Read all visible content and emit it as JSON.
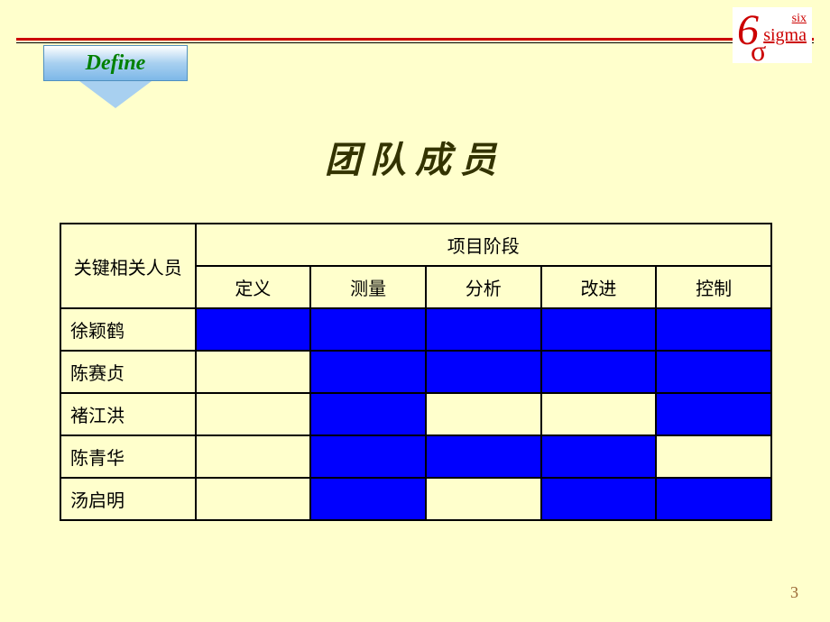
{
  "colors": {
    "slide_background": "#ffffcc",
    "header_rule": "#cc0000",
    "table_border": "#000000",
    "cell_filled": "#0000ff",
    "title_color": "#333300",
    "define_text_color": "#008000",
    "logo_color": "#cc0000",
    "page_number_color": "#996633"
  },
  "logo": {
    "six_digit": "6",
    "text_top": "six",
    "text_bottom": "sigma",
    "sigma": "σ"
  },
  "define_label": "Define",
  "title": "团队成员",
  "table": {
    "header_person": "关键相关人员",
    "header_phases_group": "项目阶段",
    "phases": [
      "定义",
      "测量",
      "分析",
      "改进",
      "控制"
    ],
    "rows": [
      {
        "name": "徐颖鹤",
        "cells": [
          true,
          true,
          true,
          true,
          true
        ]
      },
      {
        "name": "陈赛贞",
        "cells": [
          false,
          true,
          true,
          true,
          true
        ]
      },
      {
        "name": "褚江洪",
        "cells": [
          false,
          true,
          false,
          false,
          true
        ]
      },
      {
        "name": "陈青华",
        "cells": [
          false,
          true,
          true,
          true,
          false
        ]
      },
      {
        "name": "汤启明",
        "cells": [
          false,
          true,
          false,
          true,
          true
        ]
      }
    ]
  },
  "page_number": "3"
}
